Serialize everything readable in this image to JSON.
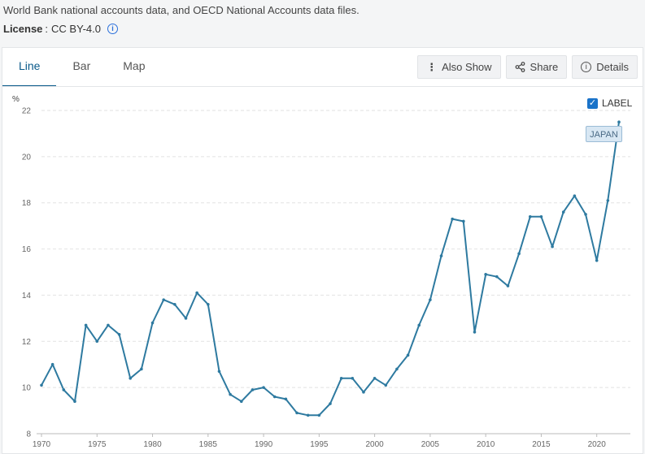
{
  "source_text": "World Bank national accounts data, and OECD National Accounts data files.",
  "license": {
    "label": "License",
    "value": "CC BY-4.0",
    "info_icon": "info-icon"
  },
  "tabs": [
    {
      "label": "Line",
      "active": true
    },
    {
      "label": "Bar",
      "active": false
    },
    {
      "label": "Map",
      "active": false
    }
  ],
  "actions": [
    {
      "label": "Also Show",
      "icon": "more-vertical-icon"
    },
    {
      "label": "Share",
      "icon": "share-icon"
    },
    {
      "label": "Details",
      "icon": "info-icon"
    }
  ],
  "label_toggle": {
    "label": "LABEL",
    "checked": true
  },
  "colors": {
    "line": "#2e7aa0",
    "active_tab": "#0a5a8a",
    "grid": "#e2e2e2"
  },
  "chart_data": {
    "type": "line",
    "unit": "%",
    "series": [
      {
        "name": "JAPAN",
        "x": [
          1970,
          1971,
          1972,
          1973,
          1974,
          1975,
          1976,
          1977,
          1978,
          1979,
          1980,
          1981,
          1982,
          1983,
          1984,
          1985,
          1986,
          1987,
          1988,
          1989,
          1990,
          1991,
          1992,
          1993,
          1994,
          1995,
          1996,
          1997,
          1998,
          1999,
          2000,
          2001,
          2002,
          2003,
          2004,
          2005,
          2006,
          2007,
          2008,
          2009,
          2010,
          2011,
          2012,
          2013,
          2014,
          2015,
          2016,
          2017,
          2018,
          2019,
          2020,
          2021,
          2022
        ],
        "values": [
          10.1,
          11.0,
          9.9,
          9.4,
          12.7,
          12.0,
          12.7,
          12.3,
          10.4,
          10.8,
          12.8,
          13.8,
          13.6,
          13.0,
          14.1,
          13.6,
          10.7,
          9.7,
          9.4,
          9.9,
          10.0,
          9.6,
          9.5,
          8.9,
          8.8,
          8.8,
          9.3,
          10.4,
          10.4,
          9.8,
          10.4,
          10.1,
          10.8,
          11.4,
          12.7,
          13.8,
          15.7,
          17.3,
          17.2,
          12.4,
          14.9,
          14.8,
          14.4,
          15.8,
          17.4,
          17.4,
          16.1,
          17.6,
          18.3,
          17.5,
          15.5,
          18.1,
          21.5
        ]
      }
    ],
    "x_ticks": [
      1970,
      1975,
      1980,
      1985,
      1990,
      1995,
      2000,
      2005,
      2010,
      2015,
      2020
    ],
    "y_ticks": [
      8,
      10,
      12,
      14,
      16,
      18,
      20,
      22
    ],
    "xlim": [
      1970,
      2022
    ],
    "ylim": [
      8,
      22
    ],
    "grid": "horizontal dashed",
    "legend": "series label at line end"
  }
}
